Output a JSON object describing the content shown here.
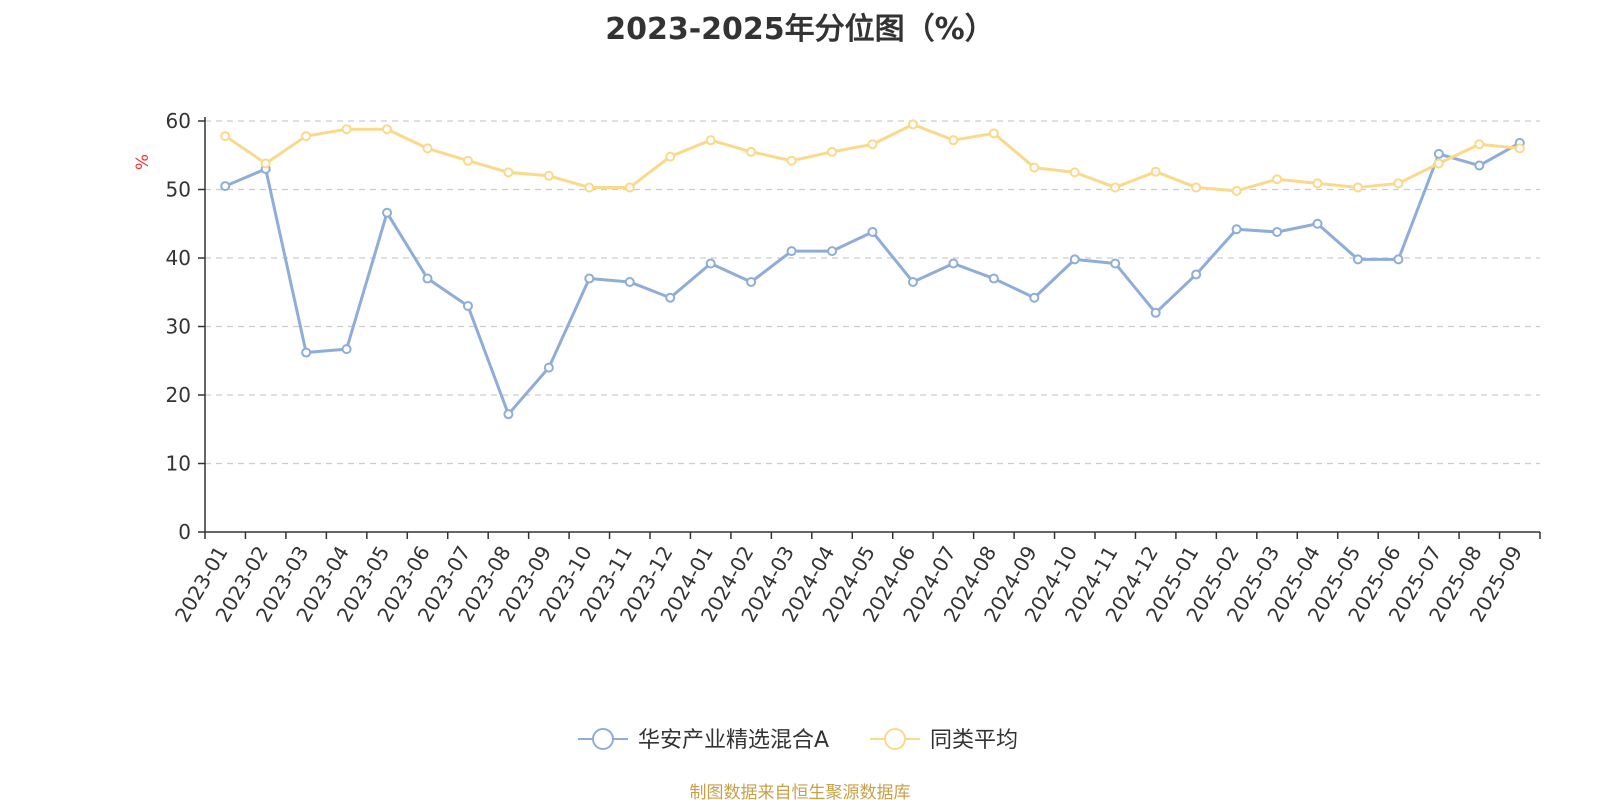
{
  "chart_data": {
    "type": "line",
    "title": "2023-2025年分位图（%）",
    "ylabel": "%",
    "xlabel": "",
    "ylim": [
      0,
      60
    ],
    "yticks": [
      0,
      10,
      20,
      30,
      40,
      50,
      60
    ],
    "grid": "horizontal dashed",
    "legend_position": "bottom",
    "categories": [
      "2023-01",
      "2023-02",
      "2023-03",
      "2023-04",
      "2023-05",
      "2023-06",
      "2023-07",
      "2023-08",
      "2023-09",
      "2023-10",
      "2023-11",
      "2023-12",
      "2024-01",
      "2024-02",
      "2024-03",
      "2024-04",
      "2024-05",
      "2024-06",
      "2024-07",
      "2024-08",
      "2024-09",
      "2024-10",
      "2024-11",
      "2024-12",
      "2025-01",
      "2025-02",
      "2025-03",
      "2025-04",
      "2025-05",
      "2025-06",
      "2025-07",
      "2025-08",
      "2025-09"
    ],
    "series": [
      {
        "name": "华安产业精选混合A",
        "color": "#8eadd9",
        "values": [
          50.5,
          53,
          26.2,
          26.7,
          46.6,
          37,
          33,
          17.2,
          24,
          37,
          36.5,
          34.2,
          39.2,
          36.5,
          41,
          41,
          43.8,
          36.5,
          39.2,
          37,
          34.2,
          39.8,
          39.2,
          32,
          37.6,
          44.2,
          43.8,
          45,
          39.8,
          39.8,
          55.2,
          53.5,
          56.8
        ]
      },
      {
        "name": "同类平均",
        "color": "#fbd98b",
        "values": [
          57.8,
          53.8,
          57.8,
          58.8,
          58.8,
          56,
          54.2,
          52.5,
          52,
          50.3,
          50.3,
          54.8,
          57.2,
          55.5,
          54.2,
          55.5,
          56.6,
          59.5,
          57.2,
          58.2,
          53.2,
          52.5,
          50.3,
          52.6,
          50.3,
          49.8,
          51.5,
          50.9,
          50.3,
          50.9,
          53.8,
          56.6,
          56
        ]
      }
    ]
  },
  "source_note": "制图数据来自恒生聚源数据库"
}
